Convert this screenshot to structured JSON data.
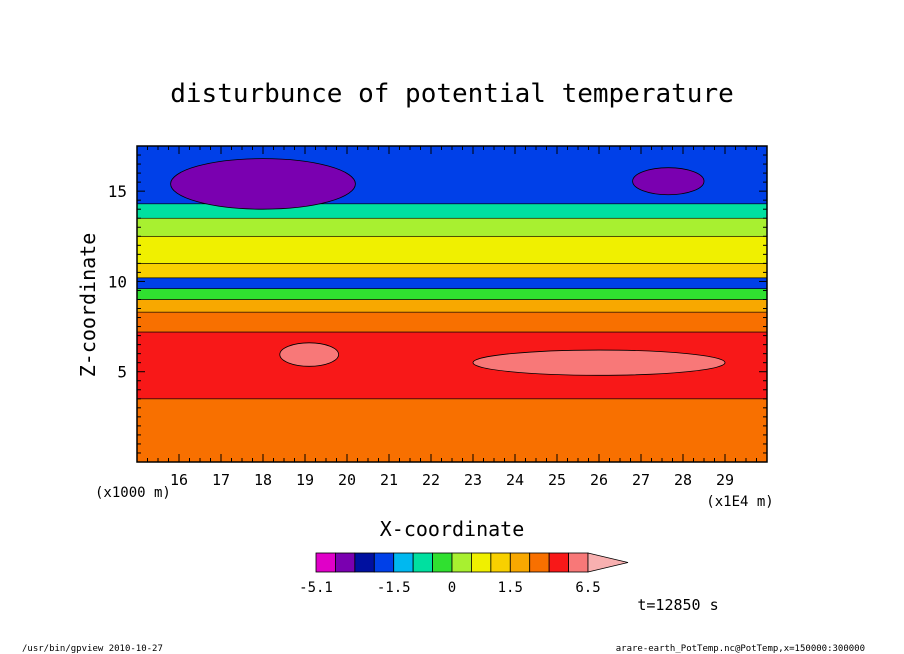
{
  "chart_data": {
    "type": "contour",
    "title": "disturbunce of potential temperature",
    "xlabel": "X-coordinate",
    "ylabel": "Z-coordinate",
    "x_unit_label": "(x1E4 m)",
    "y_unit_label": "(x1000 m)",
    "xlim": [
      15.0,
      30.0
    ],
    "ylim": [
      0,
      17.5
    ],
    "x_ticks": [
      16,
      17,
      18,
      19,
      20,
      21,
      22,
      23,
      24,
      25,
      26,
      27,
      28,
      29
    ],
    "y_ticks": [
      5,
      10,
      15
    ],
    "time_label": "t=12850 s",
    "colorbar": {
      "levels": [
        -5.1,
        -4.0,
        -3.0,
        -2.0,
        -1.5,
        -1.0,
        -0.5,
        0,
        0.5,
        1.0,
        1.5,
        2.5,
        3.5,
        5.0,
        6.5
      ],
      "tick_labels": [
        "-5.1",
        "-1.5",
        "0",
        "1.5",
        "6.5"
      ],
      "tick_values": [
        -5.1,
        -1.5,
        0,
        1.5,
        6.5
      ],
      "colors": [
        "#e000c8",
        "#7a00b0",
        "#0010a0",
        "#0040e8",
        "#00b8f0",
        "#00e0a0",
        "#30e030",
        "#a8f030",
        "#f0f000",
        "#f8d000",
        "#f8a800",
        "#f87000",
        "#f81818",
        "#f87878",
        "#f8b0b0"
      ]
    },
    "bands": [
      {
        "z": [
          0.0,
          3.5
        ],
        "value": 2.5
      },
      {
        "z": [
          3.5,
          7.2
        ],
        "value": 3.5
      },
      {
        "z": [
          7.2,
          8.3
        ],
        "value": 2.5
      },
      {
        "z": [
          8.3,
          9.0
        ],
        "value": 1.5
      },
      {
        "z": [
          9.0,
          9.6
        ],
        "value": -0.5
      },
      {
        "z": [
          9.6,
          10.2
        ],
        "value": -2.0
      },
      {
        "z": [
          10.2,
          11.0
        ],
        "value": 1.0
      },
      {
        "z": [
          11.0,
          12.5
        ],
        "value": 0.5
      },
      {
        "z": [
          12.5,
          13.5
        ],
        "value": 0.0
      },
      {
        "z": [
          13.5,
          14.3
        ],
        "value": -1.0
      },
      {
        "z": [
          14.3,
          17.5
        ],
        "value": -2.0
      }
    ],
    "features": [
      {
        "label": "minimum",
        "x": [
          15.8,
          20.2
        ],
        "z": [
          14.0,
          16.8
        ],
        "value": -4.0
      },
      {
        "label": "minimum",
        "x": [
          26.8,
          28.5
        ],
        "z": [
          14.8,
          16.3
        ],
        "value": -4.0
      },
      {
        "label": "maximum",
        "x": [
          23.0,
          29.0
        ],
        "z": [
          4.8,
          6.2
        ],
        "value": 5.0
      },
      {
        "label": "maximum",
        "x": [
          18.4,
          19.8
        ],
        "z": [
          5.3,
          6.6
        ],
        "value": 5.0
      }
    ]
  },
  "footer": {
    "left": "/usr/bin/gpview   2010-10-27",
    "right": "arare-earth_PotTemp.nc@PotTemp,x=150000:300000"
  }
}
